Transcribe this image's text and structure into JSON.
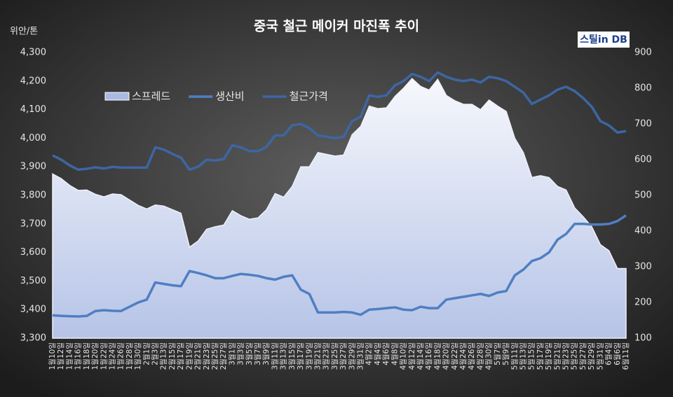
{
  "chart_data": {
    "type": "line",
    "title": "중국 철근 메이커 마진폭 추이",
    "y_label": "위안/톤",
    "source": "스틸in DB",
    "categories": [
      "1월10일",
      "1월12일",
      "1월14일",
      "1월16일",
      "1월18일",
      "1월20일",
      "1월22일",
      "1월24일",
      "1월26일",
      "1월28일",
      "1월30일",
      "2월1일",
      "2월3일",
      "2월13일",
      "2월15일",
      "2월17일",
      "2월19일",
      "2월21일",
      "2월23일",
      "2월25일",
      "2월27일",
      "3월1일",
      "3월3일",
      "3월5일",
      "3월7일",
      "3월9일",
      "3월11일",
      "3월13일",
      "3월15일",
      "3월17일",
      "3월19일",
      "3월21일",
      "3월23일",
      "3월25일",
      "3월27일",
      "3월29일",
      "3월31일",
      "4월2일",
      "4월4일",
      "4월6일",
      "4월8일",
      "4월10일",
      "4월12일",
      "4월14일",
      "4월16일",
      "4월18일",
      "4월20일",
      "4월22일",
      "4월24일",
      "4월26일",
      "4월28일",
      "4월30일",
      "5월7일",
      "5월9일",
      "5월11일",
      "5월13일",
      "5월15일",
      "5월17일",
      "5월19일",
      "5월21일",
      "5월23일",
      "5월25일",
      "5월27일",
      "5월29일",
      "5월31일",
      "6월4일",
      "6월6일",
      "6월11일"
    ],
    "series": [
      {
        "name": "스프레드",
        "style": "area",
        "axis": "y2",
        "color": "#a9b9e3",
        "values": [
          560,
          547,
          528,
          514,
          515,
          503,
          496,
          504,
          502,
          487,
          472,
          462,
          473,
          470,
          460,
          450,
          355,
          372,
          405,
          412,
          417,
          457,
          443,
          433,
          437,
          460,
          505,
          495,
          525,
          580,
          580,
          620,
          615,
          610,
          613,
          670,
          693,
          750,
          743,
          745,
          777,
          800,
          827,
          805,
          795,
          825,
          780,
          765,
          755,
          755,
          740,
          767,
          750,
          735,
          660,
          620,
          550,
          555,
          550,
          525,
          515,
          465,
          440,
          412,
          362,
          345,
          295,
          295
        ]
      },
      {
        "name": "생산비",
        "style": "line",
        "color": "#4f7fc2",
        "values": [
          3380,
          3378,
          3377,
          3376,
          3378,
          3395,
          3398,
          3396,
          3395,
          3410,
          3425,
          3435,
          3495,
          3490,
          3485,
          3482,
          3535,
          3528,
          3520,
          3510,
          3510,
          3518,
          3525,
          3522,
          3518,
          3510,
          3505,
          3515,
          3520,
          3470,
          3455,
          3390,
          3390,
          3390,
          3392,
          3390,
          3382,
          3400,
          3402,
          3405,
          3408,
          3400,
          3398,
          3410,
          3405,
          3405,
          3435,
          3440,
          3445,
          3450,
          3455,
          3448,
          3460,
          3465,
          3520,
          3540,
          3570,
          3580,
          3600,
          3645,
          3665,
          3700,
          3700,
          3698,
          3698,
          3700,
          3710,
          3730
        ]
      },
      {
        "name": "철근가격",
        "style": "line",
        "color": "#3d66a3",
        "values": [
          3940,
          3925,
          3905,
          3890,
          3893,
          3898,
          3894,
          3900,
          3897,
          3897,
          3897,
          3897,
          3968,
          3960,
          3945,
          3932,
          3890,
          3900,
          3925,
          3922,
          3927,
          3975,
          3968,
          3955,
          3955,
          3970,
          4010,
          4010,
          4045,
          4050,
          4035,
          4010,
          4005,
          4000,
          4005,
          4060,
          4075,
          4150,
          4145,
          4150,
          4185,
          4200,
          4225,
          4215,
          4200,
          4230,
          4215,
          4205,
          4200,
          4205,
          4195,
          4215,
          4210,
          4200,
          4180,
          4160,
          4120,
          4135,
          4150,
          4170,
          4180,
          4165,
          4140,
          4110,
          4060,
          4045,
          4020,
          4025
        ]
      }
    ],
    "ylim": [
      3300,
      4300
    ],
    "yticks": [
      {
        "value": 3300,
        "label": "3,300"
      },
      {
        "value": 3400,
        "label": "3,400"
      },
      {
        "value": 3500,
        "label": "3,500"
      },
      {
        "value": 3600,
        "label": "3,600"
      },
      {
        "value": 3700,
        "label": "3,700"
      },
      {
        "value": 3800,
        "label": "3,800"
      },
      {
        "value": 3900,
        "label": "3,900"
      },
      {
        "value": 4000,
        "label": "4,000"
      },
      {
        "value": 4100,
        "label": "4,100"
      },
      {
        "value": 4200,
        "label": "4,200"
      },
      {
        "value": 4300,
        "label": "4,300"
      }
    ],
    "y2lim": [
      100,
      900
    ],
    "y2ticks": [
      100,
      200,
      300,
      400,
      500,
      600,
      700,
      800,
      900
    ]
  }
}
